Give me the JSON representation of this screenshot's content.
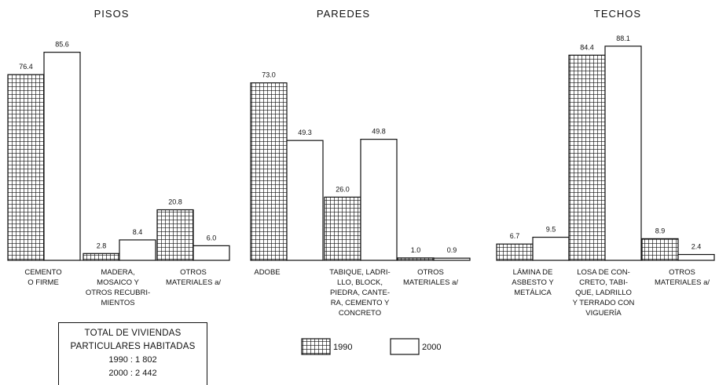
{
  "chart_data": [
    {
      "type": "bar",
      "title": "PISOS",
      "categories": [
        [
          "CEMENTO",
          "O FIRME"
        ],
        [
          "MADERA,",
          "MOSAICO Y",
          "OTROS RECUBRI-",
          "MIENTOS"
        ],
        [
          "OTROS",
          "MATERIALES a/"
        ]
      ],
      "series": [
        {
          "name": "1990",
          "values": [
            76.4,
            2.8,
            20.8
          ],
          "labels": [
            "76.4",
            "2.8",
            "20.8"
          ]
        },
        {
          "name": "2000",
          "values": [
            85.6,
            8.4,
            6.0
          ],
          "labels": [
            "85.6",
            "8.4",
            "6.0"
          ]
        }
      ],
      "ylim": [
        0,
        100
      ]
    },
    {
      "type": "bar",
      "title": "PAREDES",
      "categories": [
        [
          "ADOBE"
        ],
        [
          "TABIQUE, LADRI-",
          "LLO, BLOCK,",
          "PIEDRA, CANTE-",
          "RA, CEMENTO Y",
          "CONCRETO"
        ],
        [
          "OTROS",
          "MATERIALES a/"
        ]
      ],
      "series": [
        {
          "name": "1990",
          "values": [
            73.0,
            26.0,
            1.0
          ],
          "labels": [
            "73.0",
            "26.0",
            "1.0"
          ]
        },
        {
          "name": "2000",
          "values": [
            49.3,
            49.8,
            0.9
          ],
          "labels": [
            "49.3",
            "49.8",
            "0.9"
          ]
        }
      ],
      "ylim": [
        0,
        100
      ]
    },
    {
      "type": "bar",
      "title": "TECHOS",
      "categories": [
        [
          "LÁMINA DE",
          "ASBESTO Y",
          "METÁLICA"
        ],
        [
          "LOSA DE CON-",
          "CRETO, TABI-",
          "QUE, LADRILLO",
          "Y TERRADO CON",
          "VIGUERÍA"
        ],
        [
          "OTROS",
          "MATERIALES a/"
        ]
      ],
      "series": [
        {
          "name": "1990",
          "values": [
            6.7,
            84.4,
            8.9
          ],
          "labels": [
            "6.7",
            "84.4",
            "8.9"
          ]
        },
        {
          "name": "2000",
          "values": [
            9.5,
            88.1,
            2.4
          ],
          "labels": [
            "9.5",
            "88.1",
            "2.4"
          ]
        }
      ],
      "ylim": [
        0,
        100
      ]
    }
  ],
  "legend": {
    "items": [
      "1990",
      "2000"
    ]
  },
  "total_box": {
    "line1": "TOTAL DE VIVIENDAS",
    "line2": "PARTICULARES HABITADAS",
    "line3": "1990 : 1 802",
    "line4": "2000 : 2 442"
  }
}
